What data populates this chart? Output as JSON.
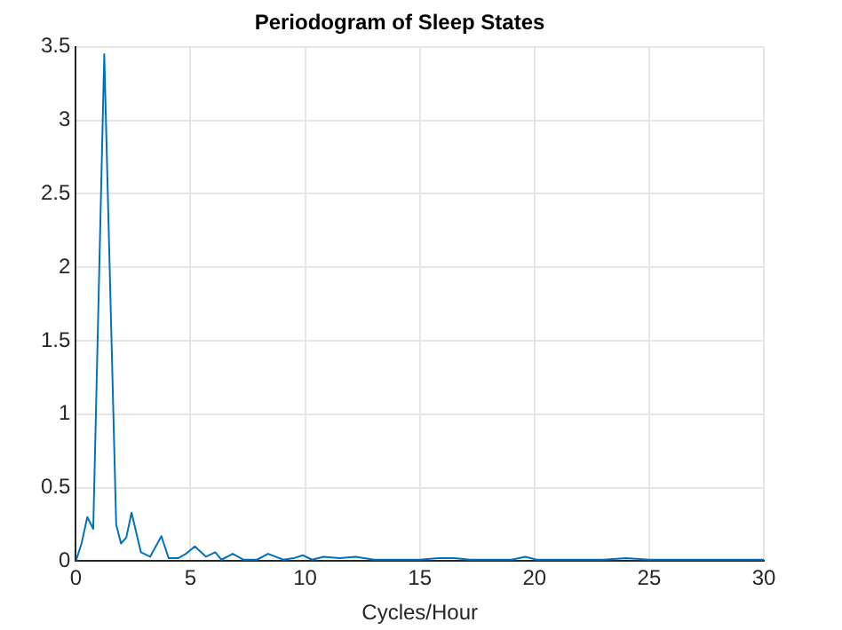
{
  "chart_data": {
    "type": "line",
    "title": "Periodogram of Sleep States",
    "xlabel": "Cycles/Hour",
    "x": [
      0,
      0.25,
      0.5,
      0.76,
      1.24,
      1.76,
      1.97,
      2.2,
      2.43,
      2.84,
      3.24,
      3.73,
      4.05,
      4.46,
      4.8,
      5.19,
      5.68,
      6.08,
      6.35,
      6.84,
      7.3,
      7.9,
      8.38,
      9.05,
      9.5,
      9.9,
      10.3,
      10.8,
      11.5,
      12.2,
      13,
      14,
      15,
      15.8,
      16.5,
      17.2,
      18,
      19,
      19.6,
      20.1,
      21,
      22,
      23,
      24,
      25,
      26,
      27,
      28,
      29,
      30
    ],
    "series": [
      {
        "color": "#0072bd",
        "values": [
          0,
          0.12,
          0.3,
          0.22,
          3.45,
          0.25,
          0.12,
          0.16,
          0.33,
          0.06,
          0.03,
          0.17,
          0.02,
          0.02,
          0.05,
          0.1,
          0.03,
          0.06,
          0.01,
          0.05,
          0.01,
          0.01,
          0.05,
          0.01,
          0.02,
          0.04,
          0.01,
          0.03,
          0.02,
          0.03,
          0.01,
          0.01,
          0.01,
          0.02,
          0.02,
          0.01,
          0.01,
          0.01,
          0.03,
          0.01,
          0.01,
          0.01,
          0.01,
          0.02,
          0.01,
          0.01,
          0.01,
          0.01,
          0.01,
          0.01
        ]
      }
    ],
    "xlim": [
      0,
      30
    ],
    "xticks": [
      0,
      5,
      10,
      15,
      20,
      25,
      30
    ],
    "ylim": [
      0,
      3.5
    ],
    "yticks": [
      0,
      0.5,
      1,
      1.5,
      2,
      2.5,
      3,
      3.5
    ],
    "grid": true
  }
}
